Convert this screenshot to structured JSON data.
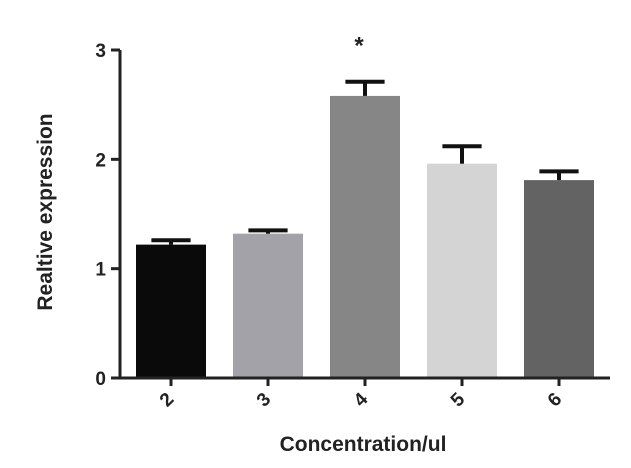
{
  "chart_data": {
    "type": "bar",
    "xlabel": "Concentration/ul",
    "ylabel": "Realtive expression",
    "categories": [
      "2",
      "3",
      "4",
      "5",
      "6"
    ],
    "values": [
      1.22,
      1.32,
      2.58,
      1.96,
      1.81
    ],
    "error_upper": [
      1.26,
      1.35,
      2.71,
      2.12,
      1.89
    ],
    "bar_colors": [
      "#0a0a0a",
      "#a2a2a8",
      "#868686",
      "#d4d4d4",
      "#636363"
    ],
    "ylim": [
      0,
      3
    ],
    "yticks": [
      "0",
      "1",
      "2",
      "3"
    ],
    "grid": false,
    "annotations": [
      {
        "category": "4",
        "text": "*"
      }
    ]
  }
}
